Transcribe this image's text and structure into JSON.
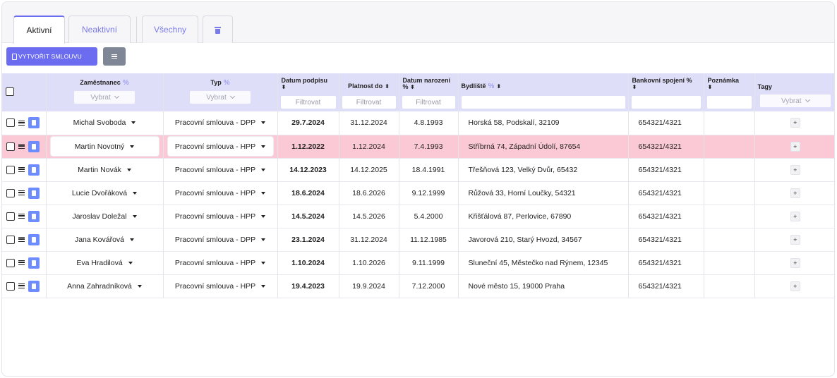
{
  "tabs": {
    "active": "Aktivní",
    "inactive": "Neaktivní",
    "all": "Všechny",
    "trash_icon": "trash-icon"
  },
  "toolbar": {
    "create_label": "VYTVOŘIT SMLOUVU",
    "menu_icon": "hamburger-menu-icon"
  },
  "columns": {
    "employee": "Zaměstnanec",
    "type": "Typ",
    "sign_date": "Datum podpisu",
    "valid_to": "Platnost do",
    "birth_date_1": "Datum narození",
    "residence": "Bydliště",
    "bank": "Bankovní spojení",
    "note": "Poznámka",
    "tags": "Tagy",
    "select_placeholder": "Vybrat",
    "filter_placeholder": "Filtrovat"
  },
  "rows": [
    {
      "name": "Michal Svoboda",
      "type": "Pracovní smlouva - DPP",
      "sign": "29.7.2024",
      "valid": "31.12.2024",
      "birth": "4.8.1993",
      "address": "Horská 58, Podskalí, 32109",
      "bank": "654321/4321",
      "note": "",
      "tag": "+"
    },
    {
      "name": "Martin Novotný",
      "type": "Pracovní smlouva - HPP",
      "sign": "1.12.2022",
      "valid": "1.12.2024",
      "birth": "7.4.1993",
      "address": "Stříbrná 74, Západní Údolí, 87654",
      "bank": "654321/4321",
      "note": "",
      "tag": "+"
    },
    {
      "name": "Martin Novák",
      "type": "Pracovní smlouva - HPP",
      "sign": "14.12.2023",
      "valid": "14.12.2025",
      "birth": "18.4.1991",
      "address": "Třešňová 123, Velký Dvůr, 65432",
      "bank": "654321/4321",
      "note": "",
      "tag": "+"
    },
    {
      "name": "Lucie Dvořáková",
      "type": "Pracovní smlouva - HPP",
      "sign": "18.6.2024",
      "valid": "18.6.2026",
      "birth": "9.12.1999",
      "address": "Růžová 33, Horní Loučky, 54321",
      "bank": "654321/4321",
      "note": "",
      "tag": "+"
    },
    {
      "name": "Jaroslav Doležal",
      "type": "Pracovní smlouva - HPP",
      "sign": "14.5.2024",
      "valid": "14.5.2026",
      "birth": "5.4.2000",
      "address": "Křišťálová 87, Perlovice, 67890",
      "bank": "654321/4321",
      "note": "",
      "tag": "+"
    },
    {
      "name": "Jana Kovářová",
      "type": "Pracovní smlouva - DPP",
      "sign": "23.1.2024",
      "valid": "31.12.2024",
      "birth": "11.12.1985",
      "address": "Javorová 210, Starý Hvozd, 34567",
      "bank": "654321/4321",
      "note": "",
      "tag": "+"
    },
    {
      "name": "Eva Hradilová",
      "type": "Pracovní smlouva - HPP",
      "sign": "1.10.2024",
      "valid": "1.10.2026",
      "birth": "9.11.1999",
      "address": "Sluneční 45, Městečko nad Rýnem, 12345",
      "bank": "654321/4321",
      "note": "",
      "tag": "+"
    },
    {
      "name": "Anna Zahradníková",
      "type": "Pracovní smlouva - HPP",
      "sign": "19.4.2023",
      "valid": "19.9.2024",
      "birth": "7.12.2000",
      "address": "Nové město 15, 19000 Praha",
      "bank": "654321/4321",
      "note": "",
      "tag": "+"
    }
  ],
  "highlight_row": 1,
  "colors": {
    "accent": "#6c6cf0",
    "header_bg": "#dedef9",
    "highlight_row": "#fbc9d6",
    "doc_button": "#6c8cff"
  }
}
